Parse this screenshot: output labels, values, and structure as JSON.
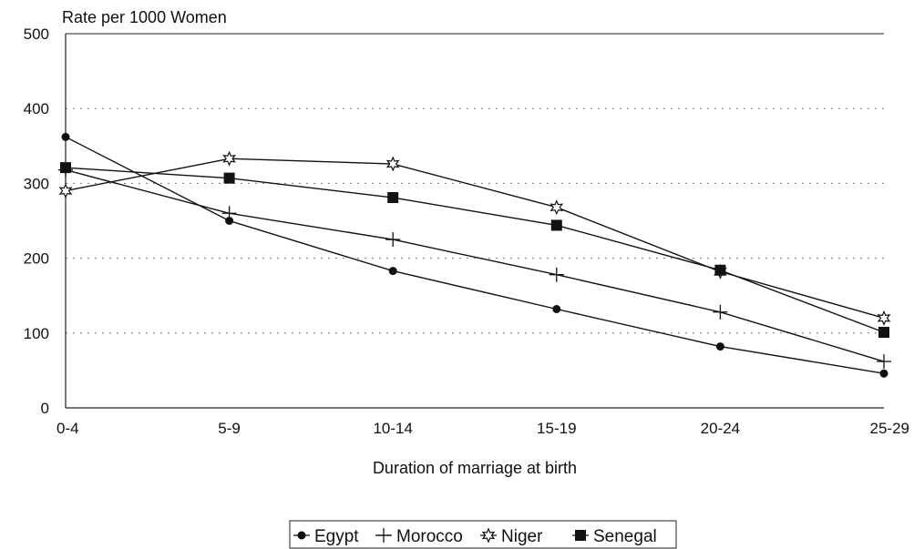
{
  "chart_data": {
    "type": "line",
    "title": "",
    "ylabel": "Rate per 1000 Women",
    "xlabel": "Duration of marriage at birth",
    "categories": [
      "0-4",
      "5-9",
      "10-14",
      "15-19",
      "20-24",
      "25-29"
    ],
    "yticks": [
      "0",
      "100",
      "200",
      "300",
      "400",
      "500"
    ],
    "ylim": [
      0,
      500
    ],
    "grid": "horizontal-dotted",
    "legend_position": "bottom-center",
    "series": [
      {
        "name": "Egypt",
        "marker": "circle",
        "values": [
          362,
          250,
          183,
          132,
          82,
          46
        ]
      },
      {
        "name": "Morocco",
        "marker": "plus",
        "values": [
          318,
          260,
          225,
          178,
          128,
          62
        ]
      },
      {
        "name": "Niger",
        "marker": "star",
        "values": [
          290,
          333,
          326,
          268,
          182,
          120
        ]
      },
      {
        "name": "Senegal",
        "marker": "square",
        "values": [
          321,
          307,
          281,
          244,
          184,
          101
        ]
      }
    ]
  }
}
